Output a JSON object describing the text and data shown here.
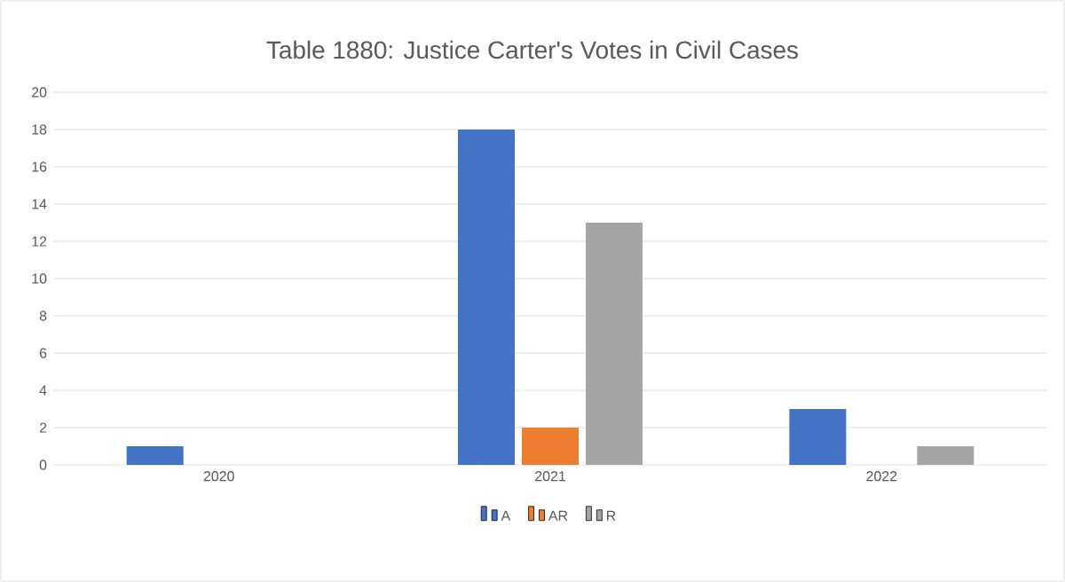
{
  "chart_data": {
    "type": "bar",
    "title": "Table 1880: Justice Carter's Votes in Civil Cases",
    "categories": [
      "2020",
      "2021",
      "2022"
    ],
    "series": [
      {
        "name": "A",
        "color": "#4472c4",
        "values": [
          1,
          18,
          3
        ]
      },
      {
        "name": "AR",
        "color": "#ed7d31",
        "values": [
          0,
          2,
          0
        ]
      },
      {
        "name": "R",
        "color": "#a5a5a5",
        "values": [
          0,
          13,
          1
        ]
      }
    ],
    "ylim": [
      0,
      20
    ],
    "yticks": [
      0,
      2,
      4,
      6,
      8,
      10,
      12,
      14,
      16,
      18,
      20
    ],
    "grid": "y",
    "legend": "bottom"
  }
}
